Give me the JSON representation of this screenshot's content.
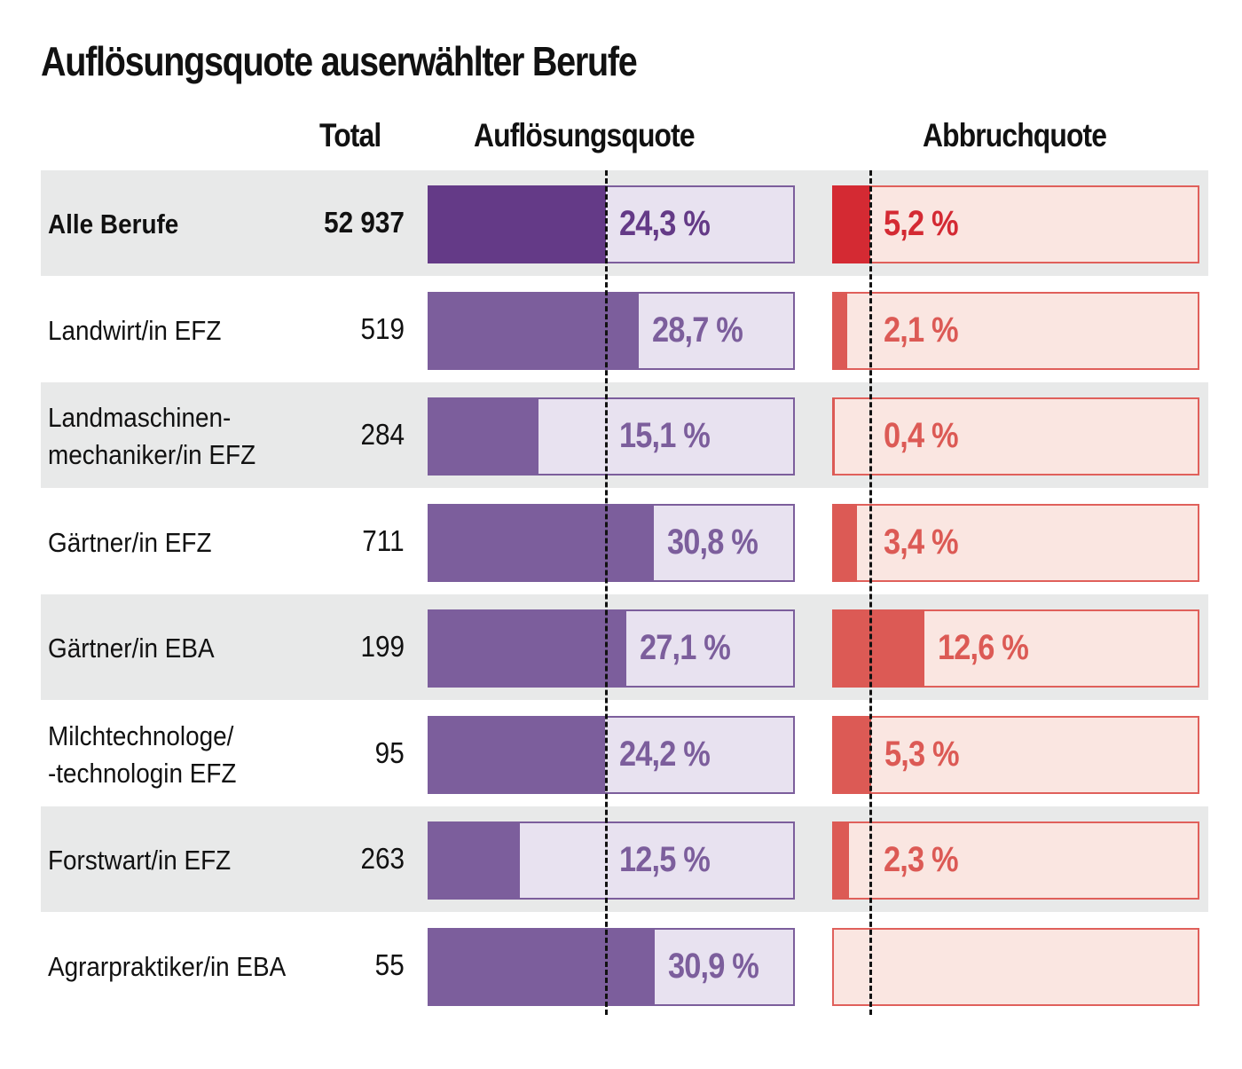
{
  "title": "Auflösungsquote auserwählter Berufe",
  "columns": {
    "total": "Total",
    "aufloesungsquote": "Auflösungsquote",
    "abbruchquote": "Abbruchquote"
  },
  "colors": {
    "purple_highlight": "#643a87",
    "purple": "#7c5e9c",
    "purple_light": "#e8e2f0",
    "red_highlight": "#d42a33",
    "red": "#dc5a55",
    "red_light": "#fae6e1",
    "band": "#e8e9e9"
  },
  "chart_data": {
    "type": "bar",
    "orientation": "horizontal",
    "title": "Auflösungsquote auserwählter Berufe",
    "categories": [
      "Alle Berufe",
      "Landwirt/in EFZ",
      "Landmaschinen-\nmechaniker/in EFZ",
      "Gärtner/in EFZ",
      "Gärtner/in EBA",
      "Milchtechnologe/\n-technologin EFZ",
      "Forstwart/in EFZ",
      "Agrarpraktiker/in EBA"
    ],
    "totals": [
      "52 937",
      "519",
      "284",
      "711",
      "199",
      "95",
      "263",
      "55"
    ],
    "series": [
      {
        "name": "Auflösungsquote",
        "values": [
          24.3,
          28.7,
          15.1,
          30.8,
          27.1,
          24.2,
          12.5,
          30.9
        ],
        "labels": [
          "24,3 %",
          "28,7 %",
          "15,1 %",
          "30,8 %",
          "27,1 %",
          "24,2 %",
          "12,5 %",
          "30,9 %"
        ],
        "reference_line": 24.3
      },
      {
        "name": "Abbruchquote",
        "values": [
          5.2,
          2.1,
          0.4,
          3.4,
          12.6,
          5.3,
          2.3,
          null
        ],
        "labels": [
          "5,2 %",
          "2,1 %",
          "0,4 %",
          "3,4 %",
          "12,6 %",
          "5,3 %",
          "2,3 %",
          ""
        ],
        "reference_line": 5.2
      }
    ],
    "xlim": [
      0,
      50
    ],
    "highlight_row": 0,
    "grid": false,
    "legend": "none"
  }
}
